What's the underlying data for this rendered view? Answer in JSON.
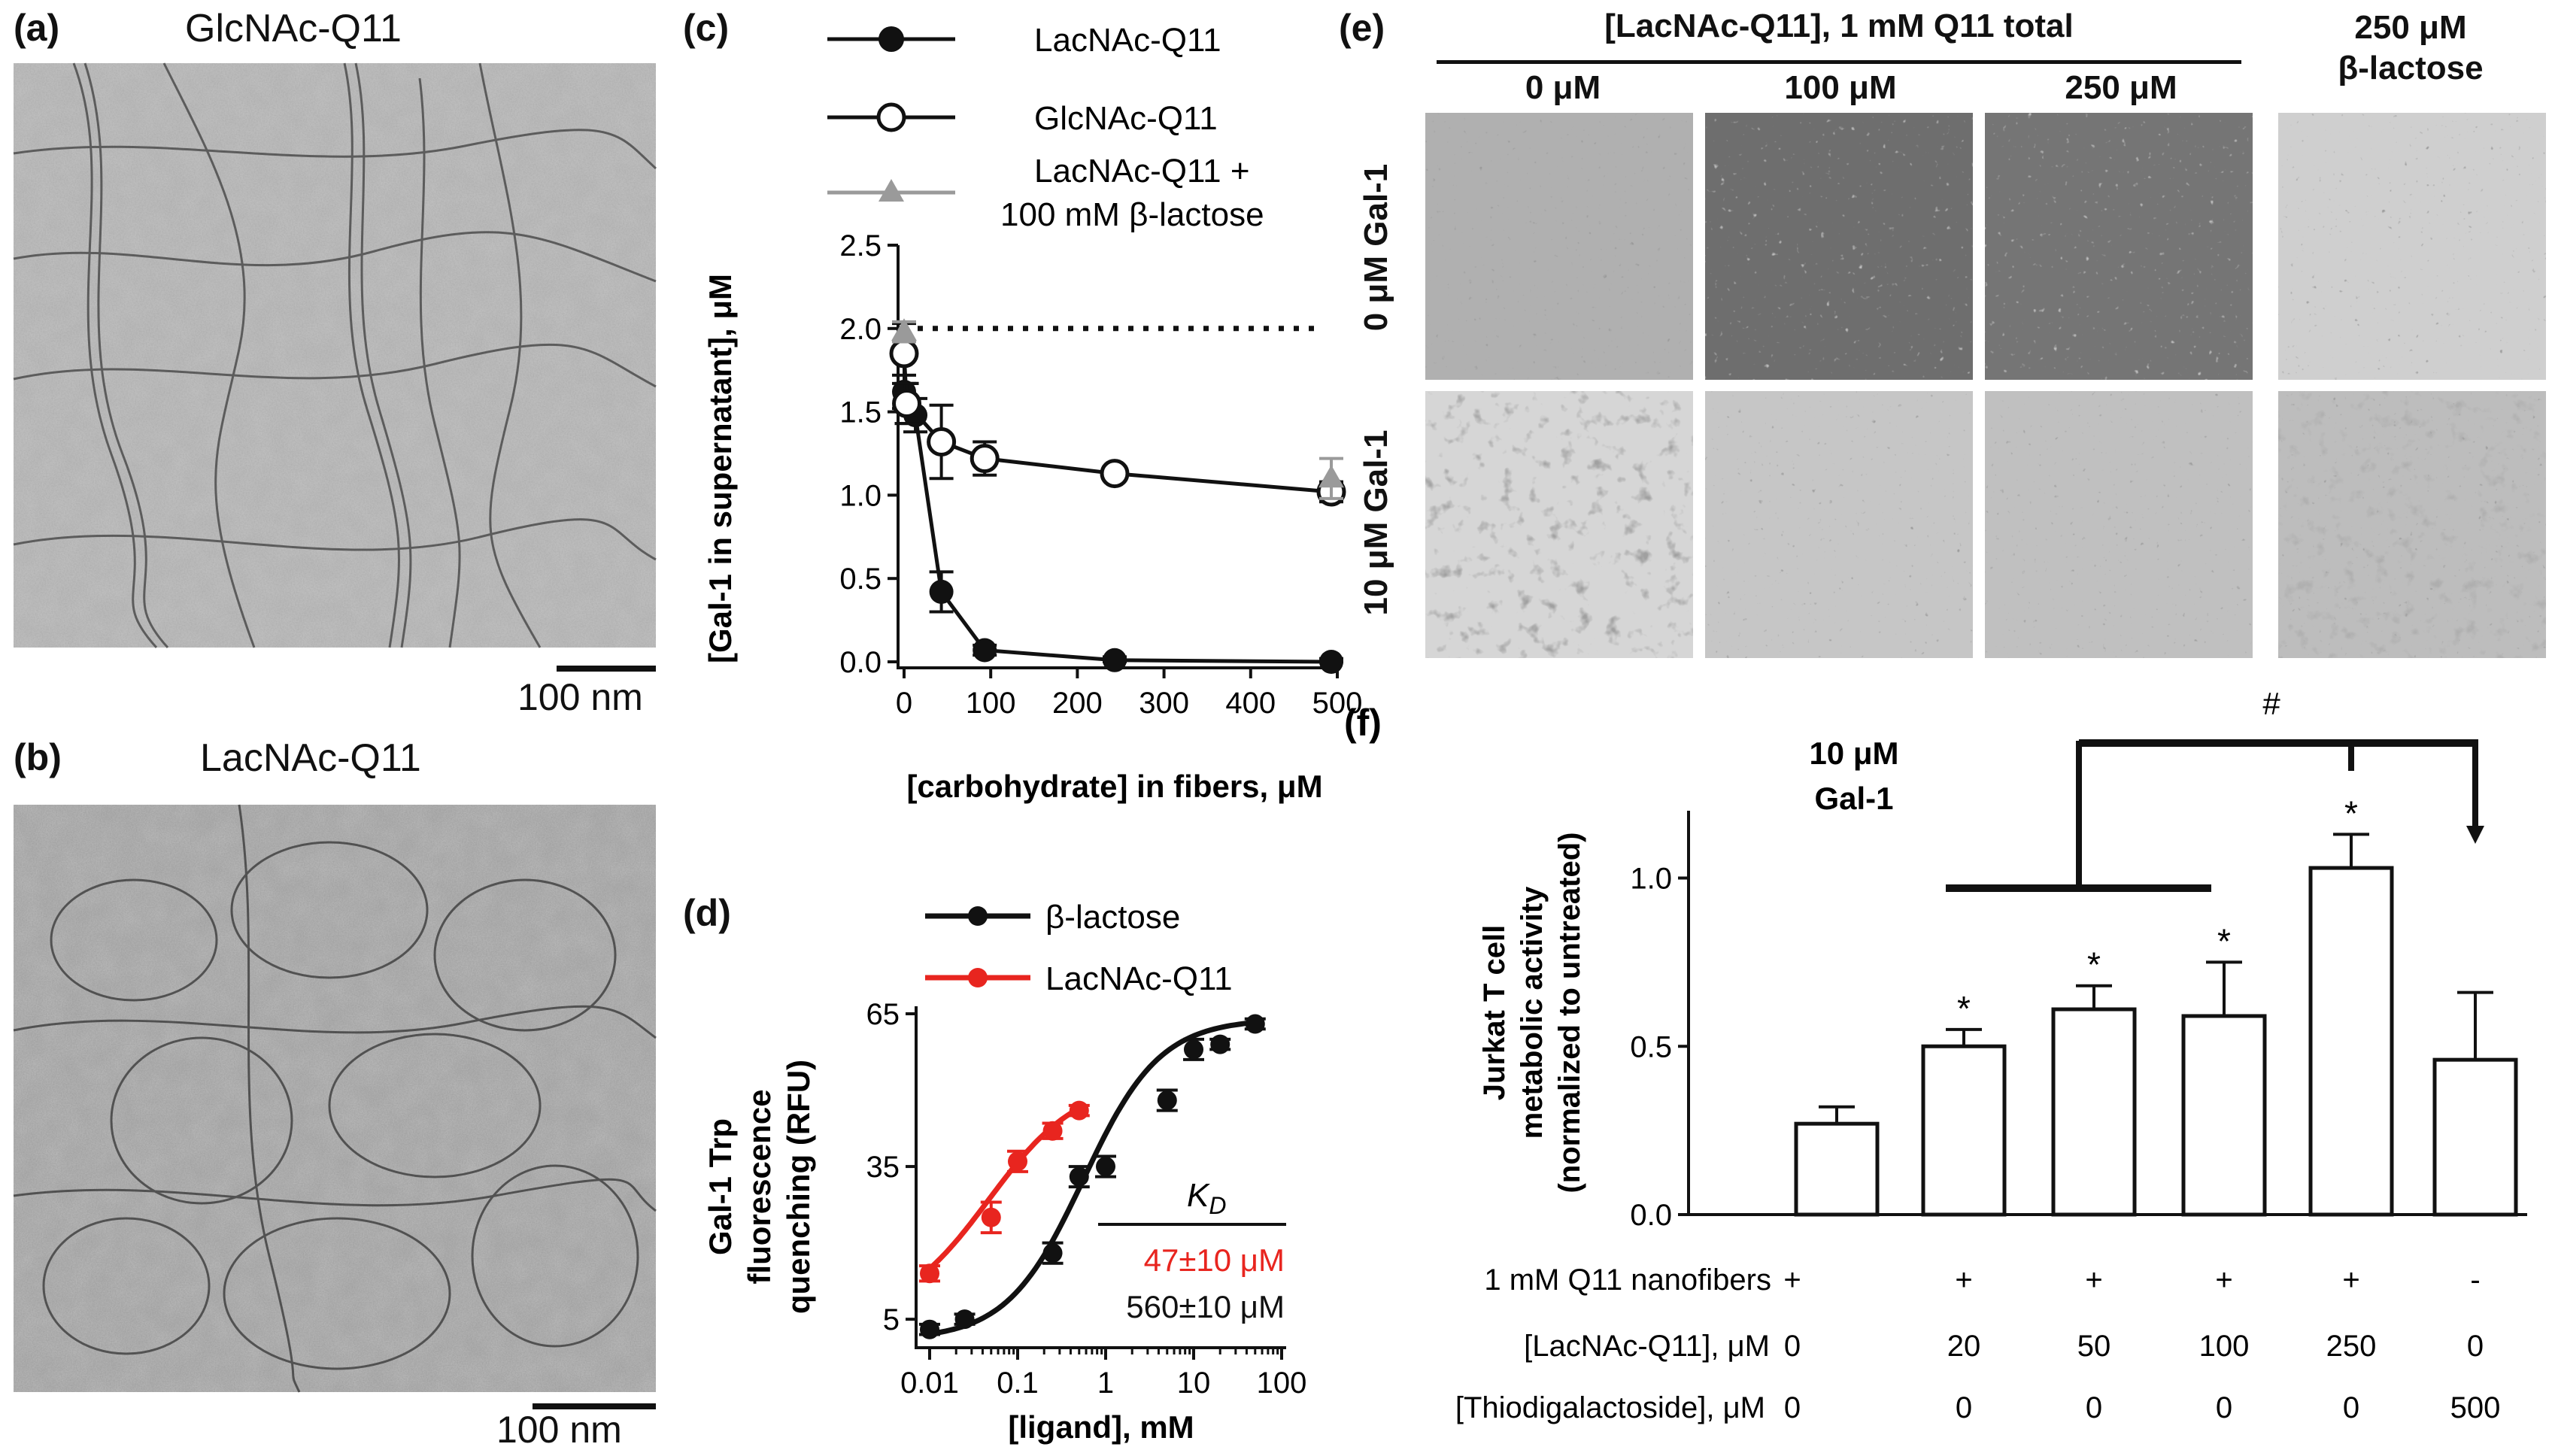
{
  "panels": {
    "a": {
      "letter": "(a)",
      "title": "GlcNAc-Q11",
      "scale": "100 nm"
    },
    "b": {
      "letter": "(b)",
      "title": "LacNAc-Q11",
      "scale": "100 nm"
    },
    "c": {
      "letter": "(c)"
    },
    "d": {
      "letter": "(d)"
    },
    "e": {
      "letter": "(e)",
      "group_header": "[LacNAc-Q11], 1 mM Q11 total",
      "columns": [
        "0 μM",
        "100 μM",
        "250 μM"
      ],
      "extra_column_line1": "250 μM",
      "extra_column_line2": "β-lactose",
      "rows": [
        "0 μM Gal-1",
        "10 μM Gal-1"
      ]
    },
    "f": {
      "letter": "(f)"
    }
  },
  "colors": {
    "black": "#111111",
    "red": "#e8251f",
    "gray": "#9a9a9a"
  },
  "chart_data": [
    {
      "panel": "c",
      "type": "scatter",
      "xlabel": "[carbohydrate] in fibers, μM",
      "ylabel": "[Gal-1 in supernatant], μM",
      "xlim": [
        0,
        500
      ],
      "ylim": [
        0,
        2.5
      ],
      "xticks": [
        "0",
        "100",
        "200",
        "300",
        "400",
        "500"
      ],
      "yticks": [
        "0.0",
        "0.5",
        "1.0",
        "1.5",
        "2.0",
        "2.5"
      ],
      "reference_line_y": 2.0,
      "legend": [
        "LacNAc-Q11",
        "GlcNAc-Q11",
        "LacNAc-Q11 +",
        "100 mM β-lactose"
      ],
      "series": [
        {
          "name": "LacNAc-Q11",
          "color": "#111111",
          "marker": "filled-circle",
          "x": [
            0,
            10,
            20,
            50,
            100,
            250,
            500
          ],
          "y": [
            1.62,
            1.55,
            1.48,
            0.42,
            0.07,
            0.01,
            0.0
          ],
          "err": [
            0.1,
            0.12,
            0.1,
            0.12,
            0.03,
            0.02,
            0.02
          ]
        },
        {
          "name": "GlcNAc-Q11",
          "color": "#111111",
          "marker": "open-circle",
          "x": [
            0,
            10,
            50,
            100,
            250,
            500
          ],
          "y": [
            1.85,
            1.55,
            1.32,
            1.22,
            1.13,
            1.02
          ],
          "err": [
            0.18,
            0.12,
            0.22,
            0.1,
            0.03,
            0.06
          ]
        },
        {
          "name": "LacNAc-Q11 + 100 mM β-lactose",
          "color": "#9a9a9a",
          "marker": "triangle",
          "x": [
            0,
            500
          ],
          "y": [
            1.98,
            1.1
          ],
          "err": [
            0.06,
            0.12
          ]
        }
      ]
    },
    {
      "panel": "d",
      "type": "scatter",
      "scale": "log-x",
      "xlabel": "[ligand], mM",
      "ylabel_lines": [
        "Gal-1 Trp",
        "fluorescence",
        "quenching (RFU)"
      ],
      "xlim": [
        0.01,
        100
      ],
      "ylim": [
        0,
        65
      ],
      "xticks": [
        "0.01",
        "0.1",
        "1",
        "10",
        "100"
      ],
      "yticks": [
        "5",
        "35",
        "65"
      ],
      "kd_label": "K",
      "kd_sub": "D",
      "kd_red": "47±10 μM",
      "kd_black": "560±10 μM",
      "series": [
        {
          "name": "β-lactose",
          "color": "#111111",
          "x": [
            0.01,
            0.025,
            0.25,
            0.5,
            1,
            5,
            10,
            20,
            50
          ],
          "y": [
            3,
            5,
            18,
            33,
            35,
            48,
            58,
            59,
            63
          ],
          "err": [
            1,
            1,
            2,
            2,
            2,
            2,
            2,
            1,
            1
          ]
        },
        {
          "name": "LacNAc-Q11",
          "color": "#e8251f",
          "x": [
            0.01,
            0.05,
            0.1,
            0.25,
            0.5
          ],
          "y": [
            14,
            25,
            36,
            42,
            46
          ],
          "err": [
            1.5,
            3,
            2,
            1.5,
            1
          ]
        }
      ]
    },
    {
      "panel": "f",
      "type": "bar",
      "title_lines": [
        "10 μM",
        "Gal-1"
      ],
      "ylabel_lines": [
        "Jurkat T cell",
        "metabolic activity",
        "(normalized to untreated)"
      ],
      "ylim": [
        0,
        1.2
      ],
      "yticks": [
        "0.0",
        "0.5",
        "1.0"
      ],
      "values": [
        0.27,
        0.5,
        0.61,
        0.59,
        1.03,
        0.46
      ],
      "err": [
        0.05,
        0.05,
        0.07,
        0.16,
        0.1,
        0.2
      ],
      "stars": [
        "",
        "*",
        "*",
        "*",
        "*",
        ""
      ],
      "significance_label": "#",
      "table_rows": [
        {
          "label": "1 mM Q11 nanofibers",
          "values": [
            "+",
            "+",
            "+",
            "+",
            "+",
            "-"
          ]
        },
        {
          "label": "[LacNAc-Q11], μM",
          "values": [
            "0",
            "20",
            "50",
            "100",
            "250",
            "0"
          ]
        },
        {
          "label": "[Thiodigalactoside], μM",
          "values": [
            "0",
            "0",
            "0",
            "0",
            "0",
            "500"
          ]
        }
      ]
    }
  ]
}
